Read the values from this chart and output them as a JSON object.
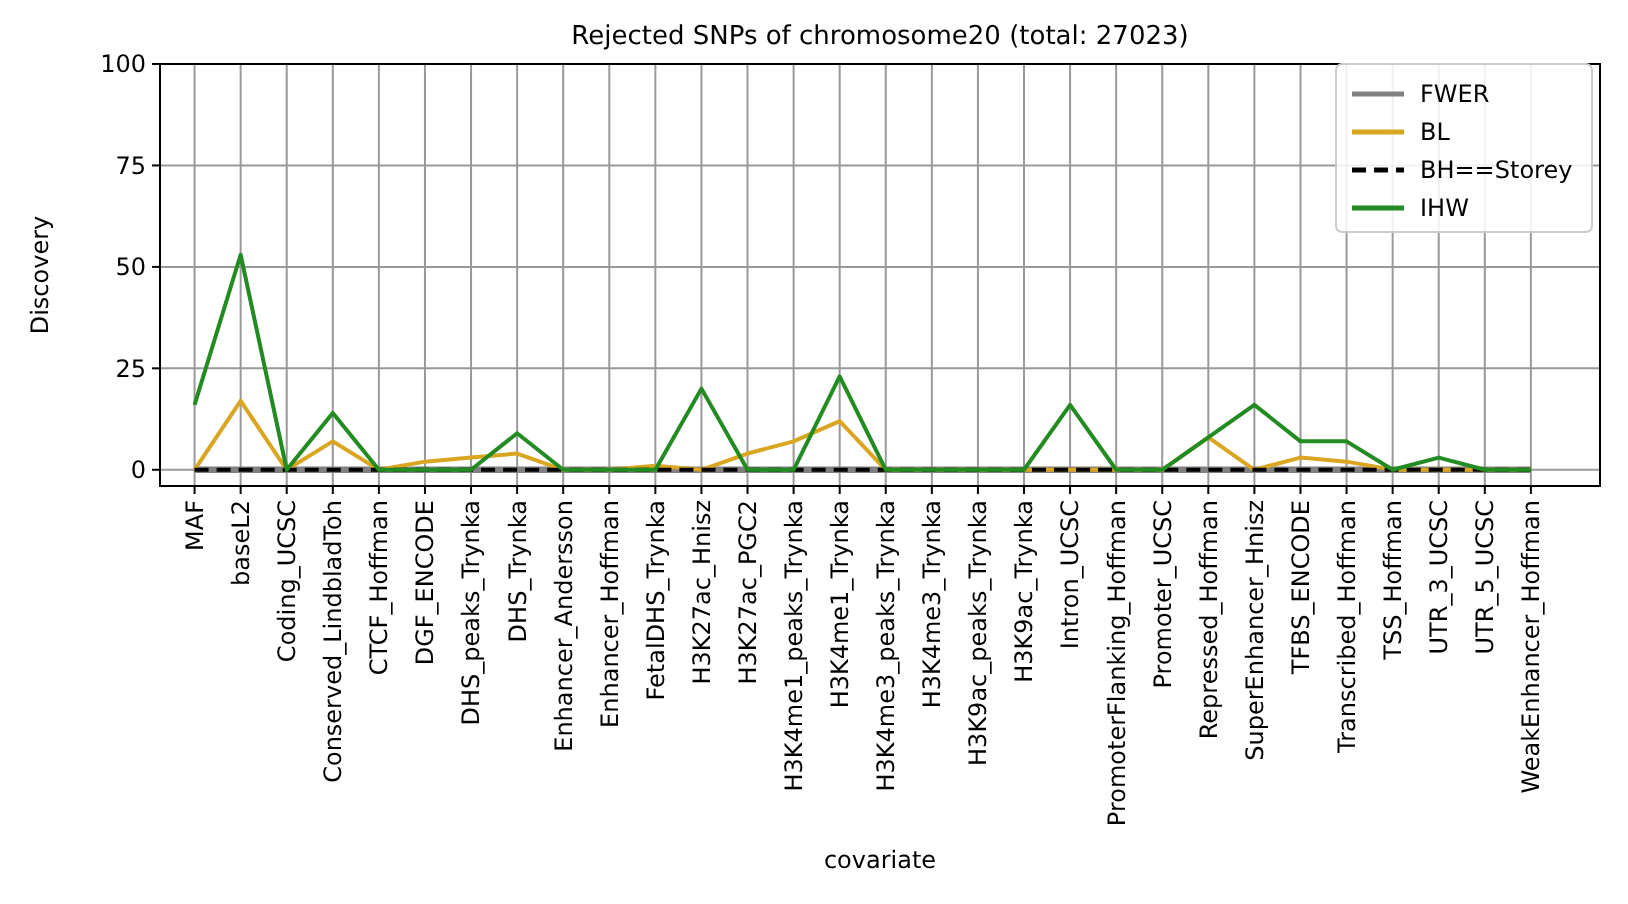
{
  "chart_data": {
    "type": "line",
    "title": "Rejected SNPs of chromosome20 (total: 27023)",
    "xlabel": "covariate",
    "ylabel": "Discovery",
    "categories": [
      "MAF",
      "baseL2",
      "Coding_UCSC",
      "Conserved_LindbladToh",
      "CTCF_Hoffman",
      "DGF_ENCODE",
      "DHS_peaks_Trynka",
      "DHS_Trynka",
      "Enhancer_Andersson",
      "Enhancer_Hoffman",
      "FetalDHS_Trynka",
      "H3K27ac_Hnisz",
      "H3K27ac_PGC2",
      "H3K4me1_peaks_Trynka",
      "H3K4me1_Trynka",
      "H3K4me3_peaks_Trynka",
      "H3K4me3_Trynka",
      "H3K9ac_peaks_Trynka",
      "H3K9ac_Trynka",
      "Intron_UCSC",
      "PromoterFlanking_Hoffman",
      "Promoter_UCSC",
      "Repressed_Hoffman",
      "SuperEnhancer_Hnisz",
      "TFBS_ENCODE",
      "Transcribed_Hoffman",
      "TSS_Hoffman",
      "UTR_3_UCSC",
      "UTR_5_UCSC",
      "WeakEnhancer_Hoffman"
    ],
    "series": [
      {
        "name": "FWER",
        "color": "#808080",
        "values": [
          0,
          0,
          0,
          0,
          0,
          0,
          0,
          0,
          0,
          0,
          0,
          0,
          0,
          0,
          0,
          0,
          0,
          0,
          0,
          0,
          0,
          0,
          0,
          0,
          0,
          0,
          0,
          0,
          0,
          0
        ]
      },
      {
        "name": "BL",
        "color": "#daa520",
        "values": [
          0,
          17,
          0,
          7,
          0,
          2,
          3,
          4,
          0,
          0,
          1,
          0,
          4,
          7,
          12,
          0,
          0,
          0,
          0,
          0,
          0,
          0,
          8,
          0,
          3,
          2,
          0,
          0,
          0,
          0
        ]
      },
      {
        "name": "BH==Storey",
        "color": "#000000",
        "line_style": "dashed",
        "values": [
          0,
          0,
          0,
          0,
          0,
          0,
          0,
          0,
          0,
          0,
          0,
          0,
          0,
          0,
          0,
          0,
          0,
          0,
          0,
          0,
          0,
          0,
          0,
          0,
          0,
          0,
          0,
          0,
          0,
          0
        ]
      },
      {
        "name": "IHW",
        "color": "#228b22",
        "values": [
          16,
          53,
          0,
          14,
          0,
          0,
          0,
          9,
          0,
          0,
          0,
          20,
          0,
          0,
          23,
          0,
          0,
          0,
          0,
          16,
          0,
          0,
          8,
          16,
          7,
          7,
          0,
          3,
          0,
          0
        ]
      }
    ],
    "ylim": [
      -4,
      100
    ],
    "yticks": [
      0,
      25,
      50,
      75,
      100
    ],
    "grid": true,
    "legend": "top right",
    "line_style": "solid",
    "marker": "none"
  }
}
